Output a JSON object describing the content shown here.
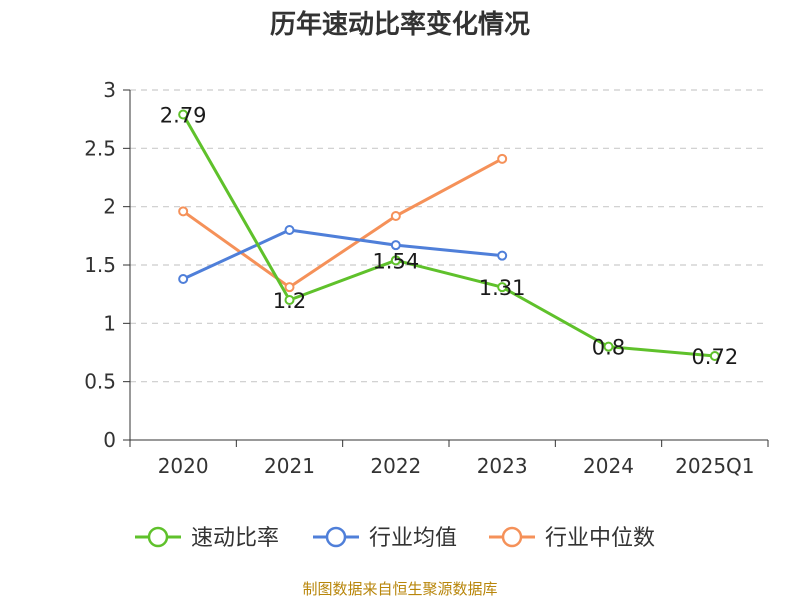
{
  "title": "历年速动比率变化情况",
  "source": "制图数据来自恒生聚源数据库",
  "chart_data": {
    "type": "line",
    "title": "历年速动比率变化情况",
    "xlabel": "",
    "ylabel": "",
    "categories": [
      "2020",
      "2021",
      "2022",
      "2023",
      "2024",
      "2025Q1"
    ],
    "ylim": [
      0,
      3
    ],
    "yticks": [
      "0",
      "0.5",
      "1",
      "1.5",
      "2",
      "2.5",
      "3"
    ],
    "grid": "horizontal dashed",
    "legend_position": "bottom",
    "series": [
      {
        "name": "速动比率",
        "color": "#5fc12b",
        "values": [
          2.79,
          1.2,
          1.54,
          1.31,
          0.8,
          0.72
        ],
        "labels": [
          "2.79",
          "1.2",
          "1.54",
          "1.31",
          "0.8",
          "0.72"
        ]
      },
      {
        "name": "行业均值",
        "color": "#4f7fd9",
        "values": [
          1.38,
          1.8,
          1.67,
          1.58,
          null,
          null
        ]
      },
      {
        "name": "行业中位数",
        "color": "#f59159",
        "values": [
          1.96,
          1.31,
          1.92,
          2.41,
          null,
          null
        ]
      }
    ]
  }
}
